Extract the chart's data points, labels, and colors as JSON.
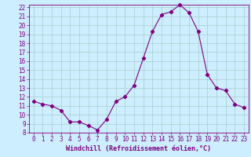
{
  "x": [
    0,
    1,
    2,
    3,
    4,
    5,
    6,
    7,
    8,
    9,
    10,
    11,
    12,
    13,
    14,
    15,
    16,
    17,
    18,
    19,
    20,
    21,
    22,
    23
  ],
  "y": [
    11.5,
    11.2,
    11.0,
    10.5,
    9.2,
    9.2,
    8.8,
    8.3,
    9.5,
    11.5,
    12.0,
    13.3,
    16.3,
    19.3,
    21.2,
    21.5,
    22.3,
    21.4,
    19.3,
    14.5,
    13.0,
    12.7,
    11.2,
    10.8
  ],
  "line_color": "#800080",
  "marker": "D",
  "marker_size": 2.2,
  "bg_color": "#cceeff",
  "grid_color": "#aacccc",
  "xlabel": "Windchill (Refroidissement éolien,°C)",
  "ylim": [
    8,
    22
  ],
  "xlim": [
    -0.5,
    23.5
  ],
  "yticks": [
    8,
    9,
    10,
    11,
    12,
    13,
    14,
    15,
    16,
    17,
    18,
    19,
    20,
    21,
    22
  ],
  "xticks": [
    0,
    1,
    2,
    3,
    4,
    5,
    6,
    7,
    8,
    9,
    10,
    11,
    12,
    13,
    14,
    15,
    16,
    17,
    18,
    19,
    20,
    21,
    22,
    23
  ],
  "tick_color": "#800080",
  "label_color": "#800080",
  "label_fontsize": 6.0,
  "tick_fontsize": 5.5
}
